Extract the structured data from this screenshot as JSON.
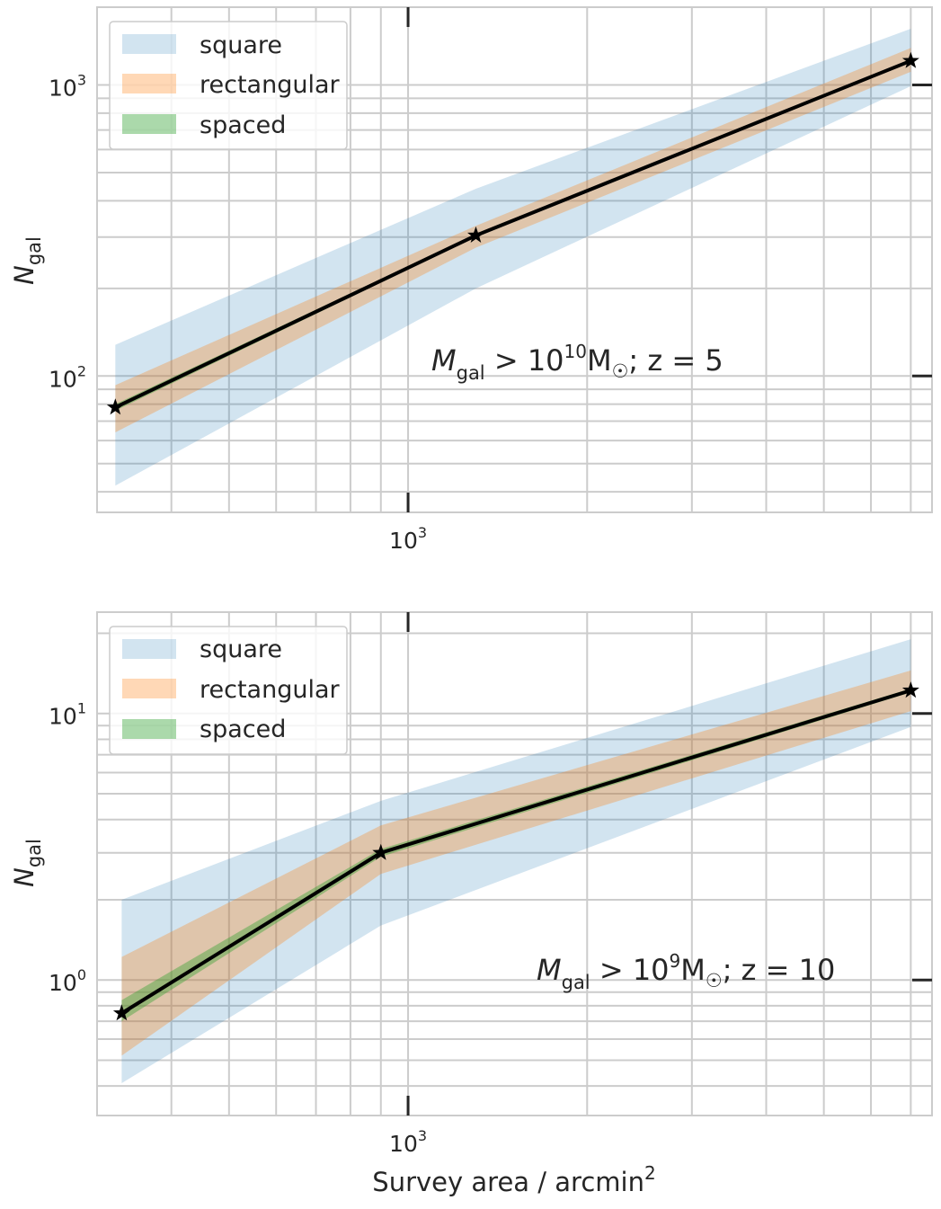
{
  "chart_data": [
    {
      "type": "area",
      "x_scale": "log",
      "y_scale": "log",
      "xlim": [
        300,
        7600
      ],
      "ylim": [
        34,
        1850
      ],
      "x_ticks": [
        {
          "value": 1000,
          "base": "10",
          "exp": "3"
        }
      ],
      "y_ticks": [
        {
          "value": 100,
          "base": "10",
          "exp": "2"
        },
        {
          "value": 1000,
          "base": "10",
          "exp": "3"
        }
      ],
      "ylabel": {
        "main": "N",
        "sub": "gal"
      },
      "xlabel": null,
      "grid": true,
      "legend_position": "upper left",
      "legend": [
        "square",
        "rectangular",
        "spaced"
      ],
      "annotation": {
        "m": "M",
        "m_sub": "gal",
        "gt": " > 10",
        "exp": "10",
        "unit": "M",
        "sun": "☉",
        "z": "; z = 5"
      },
      "x": [
        322,
        1300,
        7000
      ],
      "series": [
        {
          "name": "square",
          "color": "#1f77b4",
          "alpha": 0.2,
          "lower": [
            42,
            200,
            990
          ],
          "upper": [
            128,
            440,
            1560
          ]
        },
        {
          "name": "rectangular",
          "color": "#ff7f0e",
          "alpha": 0.3,
          "lower": [
            64,
            276,
            1110
          ],
          "upper": [
            93,
            328,
            1340
          ]
        },
        {
          "name": "spaced",
          "color": "#2ca02c",
          "alpha": 0.4,
          "lower": [
            76,
            301,
            1200
          ],
          "upper": [
            80,
            307,
            1225
          ]
        }
      ],
      "line": {
        "color": "#000000",
        "marker": "star",
        "values": [
          78,
          304,
          1210
        ]
      }
    },
    {
      "type": "area",
      "x_scale": "log",
      "y_scale": "log",
      "xlim": [
        300,
        7600
      ],
      "ylim": [
        0.31,
        24
      ],
      "x_ticks": [
        {
          "value": 1000,
          "base": "10",
          "exp": "3"
        }
      ],
      "y_ticks": [
        {
          "value": 1,
          "base": "10",
          "exp": "0"
        },
        {
          "value": 10,
          "base": "10",
          "exp": "1"
        }
      ],
      "ylabel": {
        "main": "N",
        "sub": "gal"
      },
      "xlabel": {
        "main": "Survey area / arcmin",
        "exp": "2"
      },
      "grid": true,
      "legend_position": "upper left",
      "legend": [
        "square",
        "rectangular",
        "spaced"
      ],
      "annotation": {
        "m": "M",
        "m_sub": "gal",
        "gt": " > 10",
        "exp": "9",
        "unit": "M",
        "sun": "☉",
        "z": "; z = 10"
      },
      "x": [
        330,
        900,
        7000
      ],
      "series": [
        {
          "name": "square",
          "color": "#1f77b4",
          "alpha": 0.2,
          "lower": [
            0.41,
            1.6,
            8.9
          ],
          "upper": [
            2.0,
            4.7,
            19.0
          ]
        },
        {
          "name": "rectangular",
          "color": "#ff7f0e",
          "alpha": 0.3,
          "lower": [
            0.52,
            2.5,
            10.2
          ],
          "upper": [
            1.22,
            3.8,
            14.5
          ]
        },
        {
          "name": "spaced",
          "color": "#2ca02c",
          "alpha": 0.4,
          "lower": [
            0.7,
            2.9,
            12.0
          ],
          "upper": [
            0.84,
            3.1,
            12.4
          ]
        }
      ],
      "line": {
        "color": "#000000",
        "marker": "star",
        "values": [
          0.75,
          3.0,
          12.2
        ]
      }
    }
  ]
}
